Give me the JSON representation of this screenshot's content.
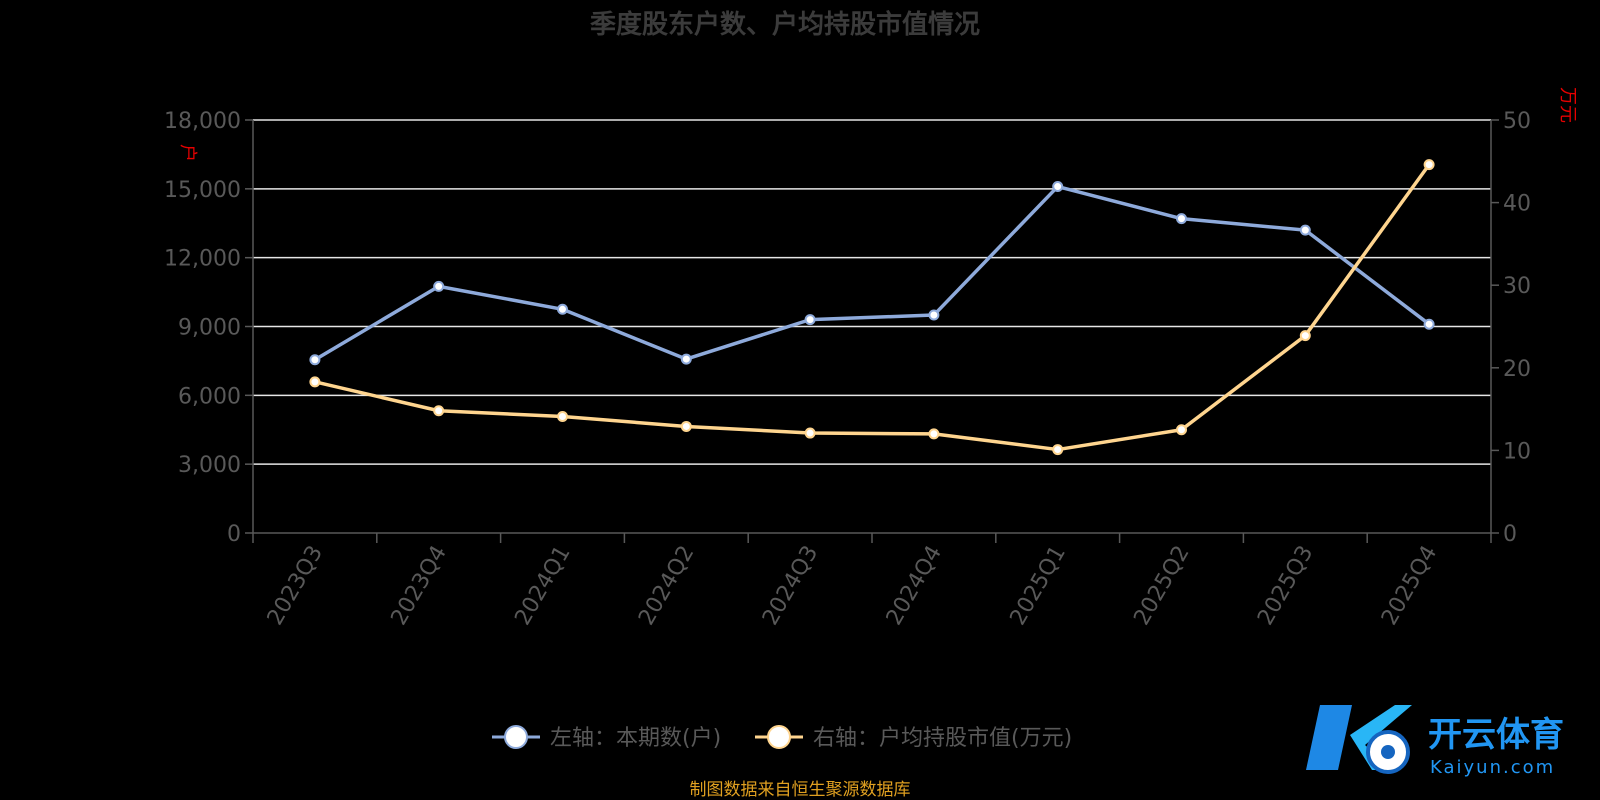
{
  "source_note": "制图数据来自恒生聚源数据库",
  "logo": {
    "name": "开云体育",
    "domain": "Kaiyun.com",
    "mark": "K"
  },
  "chart_data": {
    "type": "line",
    "title": "季度股东户数、户均持股市值情况",
    "categories": [
      "2023Q3",
      "2023Q4",
      "2024Q1",
      "2024Q2",
      "2024Q3",
      "2024Q4",
      "2025Q1",
      "2025Q2",
      "2025Q3",
      "2025Q4"
    ],
    "left_axis": {
      "unit": "户",
      "ylim": [
        0,
        18000
      ],
      "ticks": [
        "0",
        "3,000",
        "6,000",
        "9,000",
        "12,000",
        "15,000",
        "18,000"
      ]
    },
    "right_axis": {
      "unit": "万元",
      "ylim": [
        0,
        50
      ],
      "ticks": [
        "0",
        "10",
        "20",
        "30",
        "40",
        "50"
      ]
    },
    "grid": true,
    "legend_position": "bottom",
    "series": [
      {
        "name": "左轴：本期数(户)",
        "axis": "left",
        "color": "#8eaadb",
        "values": [
          7550,
          10750,
          9750,
          7580,
          9300,
          9500,
          15100,
          13700,
          13200,
          9100
        ]
      },
      {
        "name": "右轴：户均持股市值(万元)",
        "axis": "right",
        "color": "#ffd58f",
        "values": [
          18.3,
          14.8,
          14.1,
          12.9,
          12.1,
          12.0,
          10.1,
          12.5,
          23.9,
          44.6
        ]
      }
    ]
  }
}
